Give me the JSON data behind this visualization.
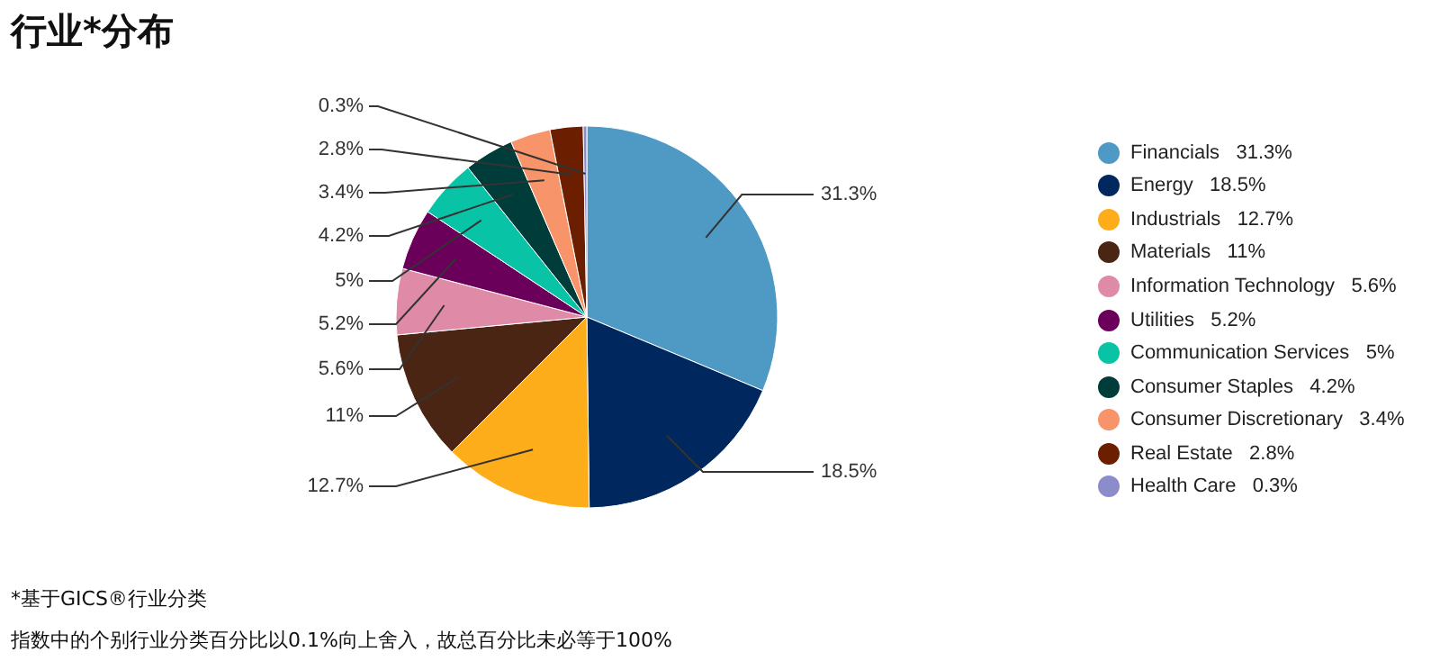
{
  "chart_data": {
    "type": "pie",
    "title": "行业*分布",
    "categories": [
      "Financials",
      "Energy",
      "Industrials",
      "Materials",
      "Information Technology",
      "Utilities",
      "Communication Services",
      "Consumer Staples",
      "Consumer Discretionary",
      "Real Estate",
      "Health Care"
    ],
    "values": [
      31.3,
      18.5,
      12.7,
      11,
      5.6,
      5.2,
      5,
      4.2,
      3.4,
      2.8,
      0.3
    ],
    "value_labels": [
      "31.3%",
      "18.5%",
      "12.7%",
      "11%",
      "5.6%",
      "5.2%",
      "5%",
      "4.2%",
      "3.4%",
      "2.8%",
      "0.3%"
    ],
    "colors": [
      "#4f9ac4",
      "#00285e",
      "#fdad1a",
      "#4a2514",
      "#df8aa6",
      "#6a0059",
      "#08c3a5",
      "#003d3a",
      "#f8946a",
      "#6b1f00",
      "#8d8ccb"
    ],
    "legend": "right",
    "annotations": [
      "*基于GICS®行业分类",
      "指数中的个别行业分类百分比以0.1%向上舍入，故总百分比未必等于100%"
    ]
  }
}
